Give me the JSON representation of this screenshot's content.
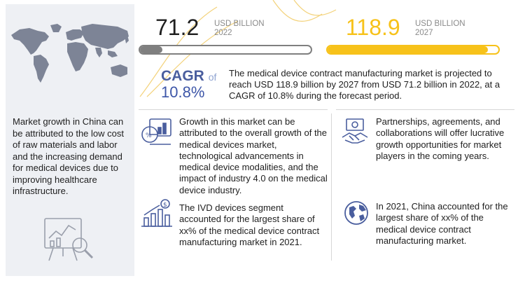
{
  "left_panel": {
    "map_icon": "world-map-icon",
    "text": "Market growth in China can be attributed to the low cost of raw materials and labor and the increasing demand for medical devices due to improving healthcare infrastructure.",
    "bottom_icon": "magnifier-chart-icon"
  },
  "stats": {
    "year_2022": {
      "value": "71.2",
      "unit": "USD BILLION",
      "year": "2022",
      "bar_fill_fraction": 0.13
    },
    "year_2027": {
      "value": "118.9",
      "unit": "USD BILLION",
      "year": "2027",
      "bar_fill_fraction": 0.94
    }
  },
  "cagr": {
    "label": "CAGR",
    "of": "of",
    "value": "10.8%"
  },
  "summary": "The medical device contract manufacturing market is projected to reach USD 118.9 billion by 2027 from USD 71.2 billion in 2022, at a CAGR of 10.8% during the forecast period.",
  "points": [
    {
      "icon": "growth-chart-icon",
      "text": "Growth in this market can be attributed to the overall growth of the medical devices market, technological advancements in medical device modalities, and the impact of industry 4.0 on the medical device industry."
    },
    {
      "icon": "handshake-money-icon",
      "text": "Partnerships, agreements, and collaborations will offer lucrative growth opportunities for market players in the coming years."
    },
    {
      "icon": "bar-dollar-icon",
      "text": "The IVD devices segment accounted for the largest share of xx% of the medical device contract manufacturing market in 2021."
    },
    {
      "icon": "globe-icon",
      "text": "In 2021, China accounted for the largest share of xx% of the medical device contract manufacturing market."
    }
  ],
  "colors": {
    "panel_bg": "#eef0f4",
    "map": "#7d8496",
    "bar_2022": "#7f7f7f",
    "bar_2027": "#f7c21a",
    "value_2027": "#f7c21a",
    "cagr": "#3d56a8",
    "icon": "#4a5e9e",
    "divider": "#d7d7d7"
  }
}
